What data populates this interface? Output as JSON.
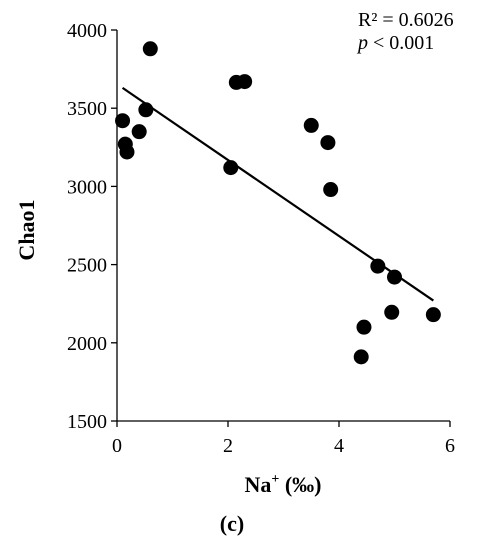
{
  "chart_data": {
    "type": "scatter",
    "xlabel": "Na",
    "xlabel_sup": "+",
    "xlabel_suffix": " (‰)",
    "ylabel": "Chao1",
    "xlim": [
      0,
      6
    ],
    "ylim": [
      1500,
      4000
    ],
    "x_ticks": [
      0,
      2,
      4,
      6
    ],
    "y_ticks": [
      1500,
      2000,
      2500,
      3000,
      3500,
      4000
    ],
    "x_tick_labels": [
      "0",
      "2",
      "4",
      "6"
    ],
    "y_tick_labels": [
      "1500",
      "2000",
      "2500",
      "3000",
      "3500",
      "4000"
    ],
    "points": [
      {
        "x": 0.1,
        "y": 3420
      },
      {
        "x": 0.15,
        "y": 3270
      },
      {
        "x": 0.18,
        "y": 3220
      },
      {
        "x": 0.4,
        "y": 3350
      },
      {
        "x": 0.52,
        "y": 3490
      },
      {
        "x": 0.6,
        "y": 3880
      },
      {
        "x": 2.05,
        "y": 3120
      },
      {
        "x": 2.15,
        "y": 3665
      },
      {
        "x": 2.3,
        "y": 3670
      },
      {
        "x": 3.5,
        "y": 3390
      },
      {
        "x": 3.8,
        "y": 3280
      },
      {
        "x": 3.85,
        "y": 2980
      },
      {
        "x": 4.4,
        "y": 1910
      },
      {
        "x": 4.45,
        "y": 2100
      },
      {
        "x": 4.7,
        "y": 2490
      },
      {
        "x": 4.95,
        "y": 2195
      },
      {
        "x": 5.0,
        "y": 2420
      },
      {
        "x": 5.7,
        "y": 2180
      }
    ],
    "trendline": {
      "x": [
        0.1,
        5.7
      ],
      "y": [
        3630,
        2270
      ]
    },
    "r_squared_text": "R² = 0.6026",
    "p_symbol": "p",
    "p_text": " < 0.001",
    "grid": false,
    "legend": "none"
  },
  "panel_label": "(c)"
}
